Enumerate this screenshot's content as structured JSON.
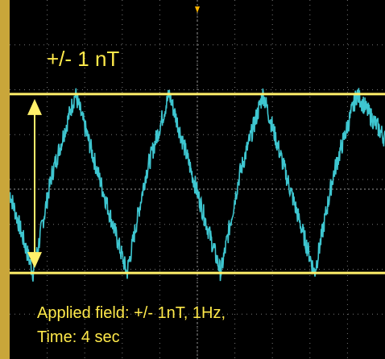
{
  "chart_data": {
    "type": "line",
    "title": "+/- 1 nT",
    "caption_line1": "Applied field: +/- 1nT, 1Hz,",
    "caption_line2": "Time: 4 sec",
    "x_range": [
      0,
      4
    ],
    "y_range": [
      -1.35,
      1.35
    ],
    "frequency_hz": 1,
    "amplitude_nt": 1,
    "grid": true,
    "reference_lines": [
      1,
      -1
    ],
    "series": [
      {
        "x": [
          0.0,
          0.25,
          0.45,
          0.7,
          1.0,
          1.25,
          1.45,
          1.7,
          2.0,
          2.25,
          2.45,
          2.7,
          3.0,
          3.25,
          3.45,
          3.7,
          4.0
        ],
        "y": [
          -0.1,
          -1.0,
          0.1,
          1.0,
          -0.1,
          -1.0,
          0.1,
          1.0,
          -0.1,
          -1.0,
          0.1,
          1.0,
          -0.1,
          -1.0,
          0.1,
          1.0,
          0.5
        ]
      }
    ],
    "colors": {
      "trace": "#3ec6d0",
      "reference": "#fff06a",
      "grid": "#777777",
      "frame": "#c9a63a"
    }
  }
}
